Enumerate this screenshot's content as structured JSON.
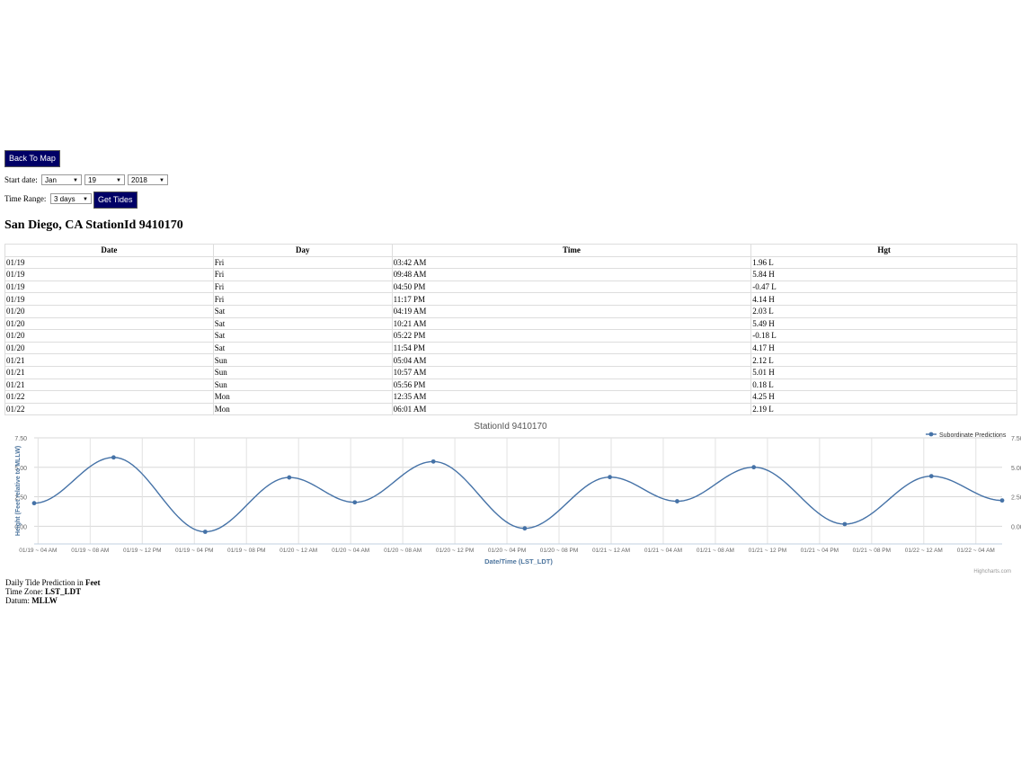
{
  "nav": {
    "back_label": "Back To Map"
  },
  "form": {
    "start_label": "Start date:",
    "month": "Jan",
    "day": "19",
    "year": "2018",
    "range_label": "Time Range:",
    "range": "3 days",
    "get_label": "Get Tides"
  },
  "station": {
    "title": "San Diego, CA StationId 9410170"
  },
  "table": {
    "headers": [
      "Date",
      "Day",
      "Time",
      "Hgt"
    ],
    "rows": [
      [
        "01/19",
        "Fri",
        "03:42 AM",
        "1.96 L"
      ],
      [
        "01/19",
        "Fri",
        "09:48 AM",
        "5.84 H"
      ],
      [
        "01/19",
        "Fri",
        "04:50 PM",
        "-0.47 L"
      ],
      [
        "01/19",
        "Fri",
        "11:17 PM",
        "4.14 H"
      ],
      [
        "01/20",
        "Sat",
        "04:19 AM",
        "2.03 L"
      ],
      [
        "01/20",
        "Sat",
        "10:21 AM",
        "5.49 H"
      ],
      [
        "01/20",
        "Sat",
        "05:22 PM",
        "-0.18 L"
      ],
      [
        "01/20",
        "Sat",
        "11:54 PM",
        "4.17 H"
      ],
      [
        "01/21",
        "Sun",
        "05:04 AM",
        "2.12 L"
      ],
      [
        "01/21",
        "Sun",
        "10:57 AM",
        "5.01 H"
      ],
      [
        "01/21",
        "Sun",
        "05:56 PM",
        "0.18 L"
      ],
      [
        "01/22",
        "Mon",
        "12:35 AM",
        "4.25 H"
      ],
      [
        "01/22",
        "Mon",
        "06:01 AM",
        "2.19 L"
      ]
    ]
  },
  "footer": {
    "line1_prefix": "Daily Tide Prediction in ",
    "line1_value": "Feet",
    "line2_prefix": "Time Zone: ",
    "line2_value": "LST_LDT",
    "line3_prefix": "Datum: ",
    "line3_value": "MLLW"
  },
  "chart_data": {
    "type": "line",
    "title": "StationId 9410170",
    "xlabel": "Date/Time (LST_LDT)",
    "ylabel": "Height (Feet relative to MLLW)",
    "x_range": [
      "01/19 03:42 AM",
      "01/22 06:01 AM"
    ],
    "ylim": [
      -1.5,
      7.5
    ],
    "yticks": [
      "0.00",
      "2.50",
      "5.00",
      "7.50"
    ],
    "xticks": [
      "01/19 ~ 04 AM",
      "01/19 ~ 08 AM",
      "01/19 ~ 12 PM",
      "01/19 ~ 04 PM",
      "01/19 ~ 08 PM",
      "01/20 ~ 12 AM",
      "01/20 ~ 04 AM",
      "01/20 ~ 08 AM",
      "01/20 ~ 12 PM",
      "01/20 ~ 04 PM",
      "01/20 ~ 08 PM",
      "01/21 ~ 12 AM",
      "01/21 ~ 04 AM",
      "01/21 ~ 08 AM",
      "01/21 ~ 12 PM",
      "01/21 ~ 04 PM",
      "01/21 ~ 08 PM",
      "01/22 ~ 12 AM",
      "01/22 ~ 04 AM"
    ],
    "legend_position": "top-right",
    "credits": "Highcharts.com",
    "grid": true,
    "series": [
      {
        "name": "Subordinate Predictions",
        "color": "#4572A7",
        "x": [
          "01/19 03:42 AM",
          "01/19 09:48 AM",
          "01/19 04:50 PM",
          "01/19 11:17 PM",
          "01/20 04:19 AM",
          "01/20 10:21 AM",
          "01/20 05:22 PM",
          "01/20 11:54 PM",
          "01/21 05:04 AM",
          "01/21 10:57 AM",
          "01/21 05:56 PM",
          "01/22 12:35 AM",
          "01/22 06:01 AM"
        ],
        "values": [
          1.96,
          5.84,
          -0.47,
          4.14,
          2.03,
          5.49,
          -0.18,
          4.17,
          2.12,
          5.01,
          0.18,
          4.25,
          2.19
        ]
      }
    ]
  }
}
